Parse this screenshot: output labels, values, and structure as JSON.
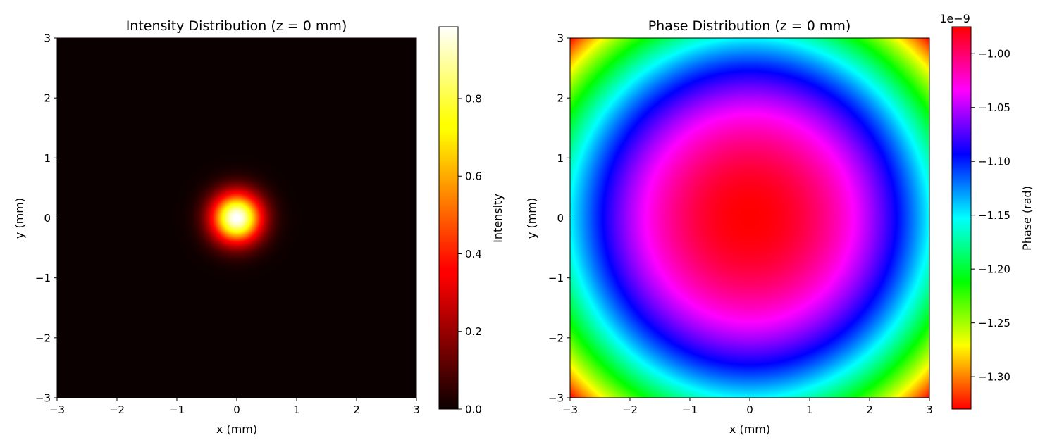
{
  "chart_data": [
    {
      "type": "heatmap",
      "title": "Intensity Distribution (z = 0 mm)",
      "xlabel": "x (mm)",
      "ylabel": "y (mm)",
      "xlim": [
        -3,
        3
      ],
      "ylim": [
        -3,
        3
      ],
      "xticks": [
        -3,
        -2,
        -1,
        0,
        1,
        2,
        3
      ],
      "yticks": [
        -3,
        -2,
        -1,
        0,
        1,
        2,
        3
      ],
      "xtick_labels": [
        "−3",
        "−2",
        "−1",
        "0",
        "1",
        "2",
        "3"
      ],
      "ytick_labels": [
        "−3",
        "−2",
        "−1",
        "0",
        "1",
        "2",
        "3"
      ],
      "colormap": "hot",
      "field": {
        "kind": "gaussian",
        "center": [
          0,
          0
        ],
        "peak": 1.0,
        "w": 0.58
      },
      "colorbar": {
        "label": "Intensity",
        "range": [
          0,
          0.985
        ],
        "ticks": [
          0.0,
          0.2,
          0.4,
          0.6,
          0.8
        ],
        "tick_labels": [
          "0.0",
          "0.2",
          "0.4",
          "0.6",
          "0.8"
        ],
        "offset_text": ""
      },
      "grid": false
    },
    {
      "type": "heatmap",
      "title": "Phase Distribution (z = 0 mm)",
      "xlabel": "x (mm)",
      "ylabel": "y (mm)",
      "xlim": [
        -3,
        3
      ],
      "ylim": [
        -3,
        3
      ],
      "xticks": [
        -3,
        -2,
        -1,
        0,
        1,
        2,
        3
      ],
      "yticks": [
        -3,
        -2,
        -1,
        0,
        1,
        2,
        3
      ],
      "xtick_labels": [
        "−3",
        "−2",
        "−1",
        "0",
        "1",
        "2",
        "3"
      ],
      "ytick_labels": [
        "−3",
        "−2",
        "−1",
        "0",
        "1",
        "2",
        "3"
      ],
      "colormap": "hsv",
      "field": {
        "kind": "quadratic",
        "center": [
          0,
          0
        ],
        "max": -0.975,
        "coef": -0.0197
      },
      "colorbar": {
        "label": "Phase (rad)",
        "range": [
          -1.33,
          -0.975
        ],
        "ticks": [
          -1.3,
          -1.25,
          -1.2,
          -1.15,
          -1.1,
          -1.05,
          -1.0
        ],
        "tick_labels": [
          "−1.30",
          "−1.25",
          "−1.20",
          "−1.15",
          "−1.10",
          "−1.05",
          "−1.00"
        ],
        "offset_text": "1e−9"
      },
      "grid": false
    }
  ]
}
